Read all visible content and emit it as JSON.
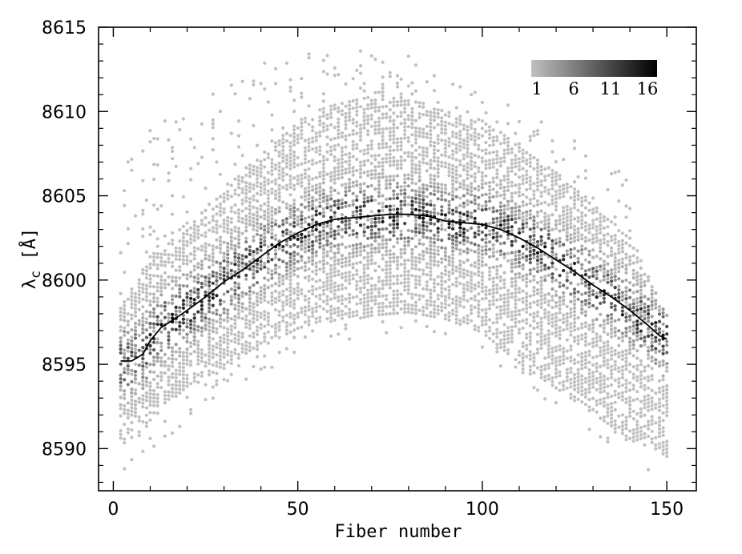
{
  "chart_data": {
    "type": "scatter",
    "subtype": "density scatter with trend line",
    "xlabel": "Fiber number",
    "ylabel": "λ",
    "ylabel_subscript": "c",
    "ylabel_unit": " [Å]",
    "xlim": [
      -4,
      158
    ],
    "ylim": [
      8587.5,
      8615
    ],
    "x_ticks": [
      0,
      50,
      100,
      150
    ],
    "y_ticks": [
      8590,
      8595,
      8600,
      8605,
      8610,
      8615
    ],
    "x_tick_labels": [
      "0",
      "50",
      "100",
      "150"
    ],
    "y_tick_labels": [
      "8590",
      "8595",
      "8600",
      "8605",
      "8610",
      "8615"
    ],
    "grid": false,
    "colorbar": {
      "position": "top-right",
      "min": 1,
      "max": 16,
      "ticks": [
        "1",
        "6",
        "11",
        "16"
      ],
      "colors": [
        "#c0c0c0",
        "#000000"
      ]
    },
    "point_cloud": {
      "x_range": [
        2,
        150
      ],
      "envelope_x": [
        2,
        10,
        20,
        30,
        40,
        50,
        60,
        70,
        80,
        90,
        100,
        110,
        120,
        130,
        140,
        150
      ],
      "outer_upper": [
        8607,
        8609,
        8610.5,
        8612,
        8613,
        8613.6,
        8613.8,
        8613.5,
        8613.4,
        8612.8,
        8611.5,
        8610.2,
        8609,
        8607.5,
        8606,
        8598.5
      ],
      "outer_lower": [
        8588.2,
        8589.5,
        8591.5,
        8593,
        8594.5,
        8595.6,
        8596.3,
        8596.8,
        8597.0,
        8596.6,
        8595.8,
        8594.0,
        8592.5,
        8591.0,
        8589.5,
        8588.0
      ],
      "core_upper": [
        8598.5,
        8601.5,
        8603,
        8605.5,
        8607.5,
        8609.5,
        8610.5,
        8611,
        8610.8,
        8610,
        8609.5,
        8608,
        8606.5,
        8604.5,
        8602.5,
        8598.0
      ],
      "core_lower": [
        8590,
        8591.5,
        8593.5,
        8594.8,
        8596,
        8597,
        8597.6,
        8597.8,
        8598,
        8597.6,
        8596.8,
        8595.0,
        8593.5,
        8592.0,
        8590.5,
        8589.5
      ]
    },
    "trend_line": {
      "x": [
        2,
        5,
        8,
        10,
        13,
        16,
        20,
        25,
        30,
        35,
        40,
        45,
        50,
        55,
        60,
        65,
        70,
        75,
        80,
        85,
        90,
        95,
        100,
        105,
        110,
        115,
        120,
        125,
        130,
        135,
        140,
        145,
        148,
        150
      ],
      "y": [
        8595.2,
        8595.2,
        8595.6,
        8596.4,
        8597.2,
        8597.6,
        8598.2,
        8599.0,
        8599.9,
        8600.6,
        8601.4,
        8602.2,
        8602.8,
        8603.3,
        8603.6,
        8603.7,
        8603.8,
        8603.9,
        8603.9,
        8603.8,
        8603.5,
        8603.4,
        8603.3,
        8603.0,
        8602.5,
        8601.9,
        8601.2,
        8600.5,
        8599.7,
        8599.0,
        8598.2,
        8597.3,
        8596.7,
        8596.5
      ]
    }
  }
}
